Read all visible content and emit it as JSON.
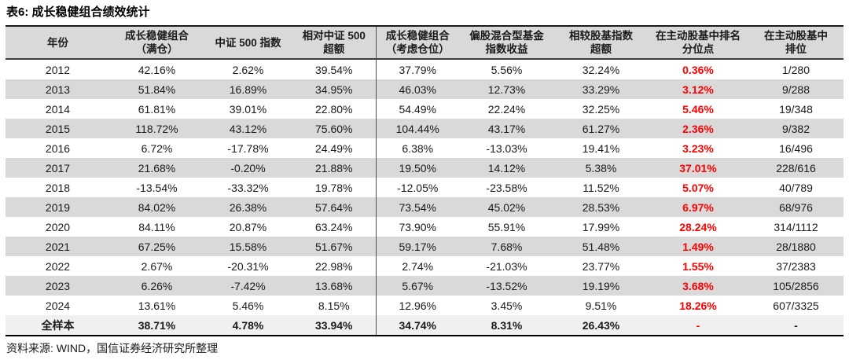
{
  "title": "表6: 成长稳健组合绩效统计",
  "source": "资料来源: WIND，国信证券经济研究所整理",
  "colors": {
    "header_bg": "#d9d9d9",
    "stripe_bg": "#d9d9d9",
    "total_bg": "#f0f0f0",
    "highlight_red": "#ff0000",
    "text": "#1a1a1a"
  },
  "table": {
    "headers": [
      [
        "年份"
      ],
      [
        "成长稳健组合",
        "（满仓）"
      ],
      [
        "中证 500 指数"
      ],
      [
        "相对中证 500",
        "超额"
      ],
      [
        "成长稳健组合",
        "（考虑仓位）"
      ],
      [
        "偏股混合型基金",
        "指数收益"
      ],
      [
        "相较股基指数",
        "超额"
      ],
      [
        "在主动股基中排名",
        "分位点"
      ],
      [
        "在主动股基中",
        "排位"
      ]
    ],
    "rows": [
      [
        "2012",
        "42.16%",
        "2.62%",
        "39.54%",
        "37.79%",
        "5.56%",
        "32.24%",
        "0.36%",
        "1/280"
      ],
      [
        "2013",
        "51.84%",
        "16.89%",
        "34.95%",
        "46.03%",
        "12.73%",
        "33.29%",
        "3.12%",
        "9/288"
      ],
      [
        "2014",
        "61.81%",
        "39.01%",
        "22.80%",
        "54.49%",
        "22.24%",
        "32.25%",
        "5.46%",
        "19/348"
      ],
      [
        "2015",
        "118.72%",
        "43.12%",
        "75.60%",
        "104.44%",
        "43.17%",
        "61.27%",
        "2.36%",
        "9/382"
      ],
      [
        "2016",
        "6.72%",
        "-17.78%",
        "24.49%",
        "6.38%",
        "-13.03%",
        "19.41%",
        "3.23%",
        "16/496"
      ],
      [
        "2017",
        "21.68%",
        "-0.20%",
        "21.88%",
        "19.50%",
        "14.12%",
        "5.38%",
        "37.01%",
        "228/616"
      ],
      [
        "2018",
        "-13.54%",
        "-33.32%",
        "19.78%",
        "-12.05%",
        "-23.58%",
        "11.52%",
        "5.07%",
        "40/789"
      ],
      [
        "2019",
        "84.02%",
        "26.38%",
        "57.64%",
        "73.54%",
        "45.02%",
        "28.53%",
        "6.97%",
        "68/976"
      ],
      [
        "2020",
        "84.11%",
        "20.87%",
        "63.24%",
        "73.90%",
        "55.91%",
        "17.99%",
        "28.24%",
        "314/1112"
      ],
      [
        "2021",
        "67.25%",
        "15.58%",
        "51.67%",
        "59.17%",
        "7.68%",
        "51.48%",
        "1.49%",
        "28/1880"
      ],
      [
        "2022",
        "2.67%",
        "-20.31%",
        "22.98%",
        "2.74%",
        "-21.03%",
        "23.77%",
        "1.55%",
        "37/2383"
      ],
      [
        "2023",
        "6.26%",
        "-7.42%",
        "13.68%",
        "5.67%",
        "-13.52%",
        "19.19%",
        "3.68%",
        "105/2856"
      ],
      [
        "2024",
        "13.61%",
        "5.46%",
        "8.15%",
        "12.96%",
        "3.45%",
        "9.51%",
        "18.26%",
        "607/3325"
      ]
    ],
    "total_row": [
      "全样本",
      "38.71%",
      "4.78%",
      "33.94%",
      "34.74%",
      "8.31%",
      "26.43%",
      "-",
      "-"
    ]
  }
}
